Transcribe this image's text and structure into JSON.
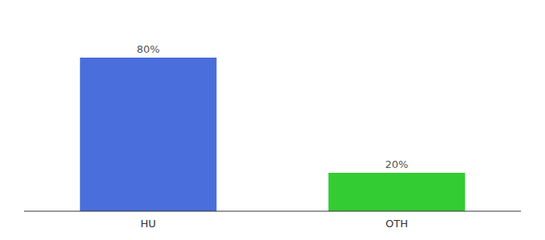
{
  "chart_data": {
    "type": "bar",
    "categories": [
      "HU",
      "OTH"
    ],
    "values": [
      80,
      20
    ],
    "value_labels": [
      "80%",
      "20%"
    ],
    "colors": [
      "#4a6fdc",
      "#33cc33"
    ],
    "ylim": [
      0,
      100
    ],
    "data_labels": true,
    "tick_labels": "x"
  }
}
